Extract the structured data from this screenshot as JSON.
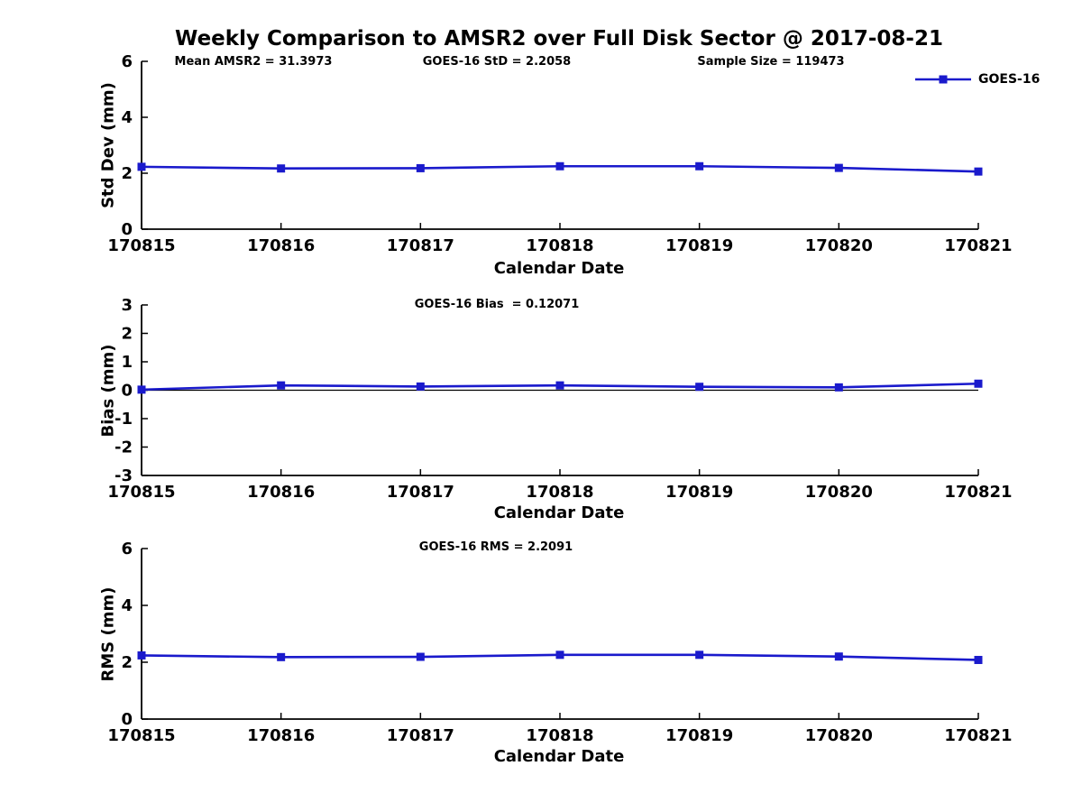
{
  "figure": {
    "title": "Weekly Comparison to AMSR2 over Full Disk Sector @ 2017-08-21",
    "background": "#ffffff",
    "axis_color": "#000000"
  },
  "legend": {
    "label": "GOES-16",
    "color": "#1a1acc",
    "marker": "square",
    "position": "top-right-outside"
  },
  "chart_data": [
    {
      "type": "line",
      "ylabel": "Std Dev (mm)",
      "xlabel": "Calendar Date",
      "categories": [
        "170815",
        "170816",
        "170817",
        "170818",
        "170819",
        "170820",
        "170821"
      ],
      "series": [
        {
          "name": "GOES-16",
          "color": "#1a1acc",
          "marker": "square",
          "values": [
            2.23,
            2.17,
            2.18,
            2.25,
            2.25,
            2.19,
            2.06
          ]
        }
      ],
      "ylim": [
        0,
        6
      ],
      "yticks": [
        0,
        2,
        4,
        6
      ],
      "grid": false,
      "zero_line": false,
      "annotations": [
        "Mean AMSR2 = 31.3973",
        "GOES-16 StD = 2.2058",
        "Sample Size = 119473"
      ]
    },
    {
      "type": "line",
      "ylabel": "Bias (mm)",
      "xlabel": "Calendar Date",
      "categories": [
        "170815",
        "170816",
        "170817",
        "170818",
        "170819",
        "170820",
        "170821"
      ],
      "series": [
        {
          "name": "GOES-16",
          "color": "#1a1acc",
          "marker": "square",
          "values": [
            0.02,
            0.17,
            0.13,
            0.17,
            0.12,
            0.1,
            0.23
          ]
        }
      ],
      "ylim": [
        -3,
        3
      ],
      "yticks": [
        -3,
        -2,
        -1,
        0,
        1,
        2,
        3
      ],
      "grid": false,
      "zero_line": true,
      "annotations": [
        "GOES-16 Bias  = 0.12071"
      ]
    },
    {
      "type": "line",
      "ylabel": "RMS (mm)",
      "xlabel": "Calendar Date",
      "categories": [
        "170815",
        "170816",
        "170817",
        "170818",
        "170819",
        "170820",
        "170821"
      ],
      "series": [
        {
          "name": "GOES-16",
          "color": "#1a1acc",
          "marker": "square",
          "values": [
            2.24,
            2.18,
            2.19,
            2.26,
            2.26,
            2.2,
            2.08
          ]
        }
      ],
      "ylim": [
        0,
        6
      ],
      "yticks": [
        0,
        2,
        4,
        6
      ],
      "grid": false,
      "zero_line": false,
      "annotations": [
        "GOES-16 RMS = 2.2091"
      ]
    }
  ]
}
